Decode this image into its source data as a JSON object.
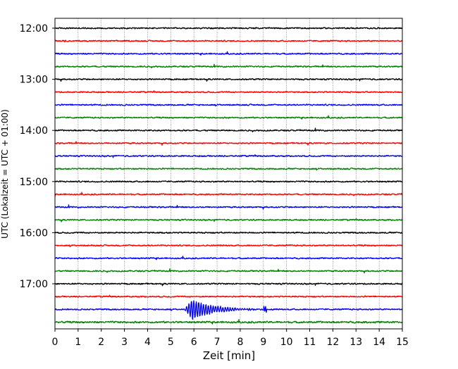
{
  "chart_data": {
    "type": "line",
    "title": "",
    "xlabel": "Zeit  [min]",
    "ylabel": "UTC (Lokalzeit = UTC + 01:00)",
    "xlim": [
      0,
      15
    ],
    "x_ticks": [
      "0",
      "1",
      "2",
      "3",
      "4",
      "5",
      "6",
      "7",
      "8",
      "9",
      "10",
      "11",
      "12",
      "13",
      "14",
      "15"
    ],
    "y_ticks": [
      "12:00",
      "13:00",
      "14:00",
      "15:00",
      "16:00",
      "17:00"
    ],
    "grid": {
      "vertical": true,
      "style": "dotted"
    },
    "trace_colors": [
      "#000000",
      "#ff0000",
      "#0000ff",
      "#008000"
    ],
    "rows": [
      {
        "time": "12:00",
        "color": "#000000"
      },
      {
        "time": "12:15",
        "color": "#ff0000"
      },
      {
        "time": "12:30",
        "color": "#0000ff"
      },
      {
        "time": "12:45",
        "color": "#008000"
      },
      {
        "time": "13:00",
        "color": "#000000"
      },
      {
        "time": "13:15",
        "color": "#ff0000"
      },
      {
        "time": "13:30",
        "color": "#0000ff"
      },
      {
        "time": "13:45",
        "color": "#008000"
      },
      {
        "time": "14:00",
        "color": "#000000"
      },
      {
        "time": "14:15",
        "color": "#ff0000"
      },
      {
        "time": "14:30",
        "color": "#0000ff"
      },
      {
        "time": "14:45",
        "color": "#008000"
      },
      {
        "time": "15:00",
        "color": "#000000"
      },
      {
        "time": "15:15",
        "color": "#ff0000"
      },
      {
        "time": "15:30",
        "color": "#0000ff"
      },
      {
        "time": "15:45",
        "color": "#008000"
      },
      {
        "time": "16:00",
        "color": "#000000"
      },
      {
        "time": "16:15",
        "color": "#ff0000"
      },
      {
        "time": "16:30",
        "color": "#0000ff"
      },
      {
        "time": "16:45",
        "color": "#008000"
      },
      {
        "time": "17:00",
        "color": "#000000"
      },
      {
        "time": "17:15",
        "color": "#ff0000"
      },
      {
        "time": "17:30",
        "color": "#0000ff",
        "event": {
          "onset_min": 5.6,
          "peak_min": 5.9,
          "decay_end_min": 9.5
        }
      },
      {
        "time": "17:45",
        "color": "#008000"
      }
    ]
  }
}
